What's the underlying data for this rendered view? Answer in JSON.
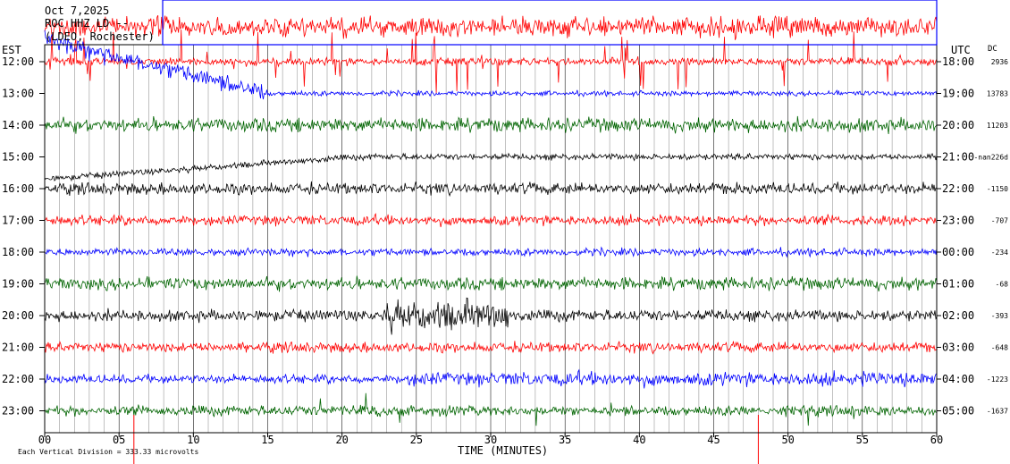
{
  "chart_data": {
    "type": "line",
    "title_lines": [
      "Oct 7,2025",
      "ROC HHZ LD --",
      "(LDEO, Rochester)"
    ],
    "left_axis_label": "EST",
    "right_axis_label": "UTC",
    "dc_label": "DC",
    "xlabel": "TIME (MINUTES)",
    "xlim": [
      0,
      60
    ],
    "x_ticks": [
      0,
      5,
      10,
      15,
      20,
      25,
      30,
      35,
      40,
      45,
      50,
      55,
      60
    ],
    "x_tick_labels": [
      "00",
      "05",
      "10",
      "15",
      "20",
      "25",
      "30",
      "35",
      "40",
      "45",
      "50",
      "55",
      "60"
    ],
    "footer_note": "Each Vertical Division = 333.33 microvolts",
    "trace_colors": [
      "#ff0000",
      "#0000ff",
      "#006400",
      "#000000"
    ],
    "rows": [
      {
        "est": "12:00",
        "utc": "18:00",
        "dc": "2936",
        "color": "#ff0000"
      },
      {
        "est": "13:00",
        "utc": "19:00",
        "dc": "13783",
        "color": "#0000ff"
      },
      {
        "est": "14:00",
        "utc": "20:00",
        "dc": "11203",
        "color": "#006400"
      },
      {
        "est": "15:00",
        "utc": "21:00",
        "dc": "-nan226d",
        "color": "#000000"
      },
      {
        "est": "16:00",
        "utc": "22:00",
        "dc": "-1150",
        "color": "#000000"
      },
      {
        "est": "17:00",
        "utc": "23:00",
        "dc": "-707",
        "color": "#ff0000"
      },
      {
        "est": "18:00",
        "utc": "00:00",
        "dc": "-234",
        "color": "#0000ff"
      },
      {
        "est": "19:00",
        "utc": "01:00",
        "dc": "-68",
        "color": "#006400"
      },
      {
        "est": "20:00",
        "utc": "02:00",
        "dc": "-393",
        "color": "#000000"
      },
      {
        "est": "21:00",
        "utc": "03:00",
        "dc": "-648",
        "color": "#ff0000"
      },
      {
        "est": "22:00",
        "utc": "04:00",
        "dc": "-1223",
        "color": "#0000ff"
      },
      {
        "est": "23:00",
        "utc": "05:00",
        "dc": "-1637",
        "color": "#006400"
      }
    ]
  }
}
